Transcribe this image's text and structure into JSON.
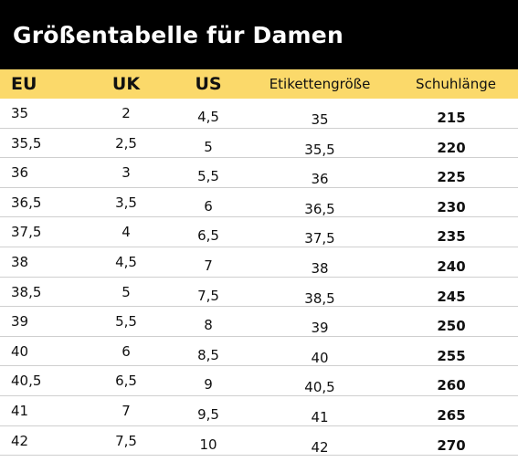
{
  "title": "Größentabelle für Damen",
  "headers": {
    "eu": "EU",
    "uk": "UK",
    "us": "US",
    "etikettengroesse": "Etikettengröße",
    "schuhlaenge": "Schuhlänge"
  },
  "rows": [
    {
      "eu": "35",
      "uk": "2",
      "us": "4,5",
      "etikett": "35",
      "laenge": "215"
    },
    {
      "eu": "35,5",
      "uk": "2,5",
      "us": "5",
      "etikett": "35,5",
      "laenge": "220"
    },
    {
      "eu": "36",
      "uk": "3",
      "us": "5,5",
      "etikett": "36",
      "laenge": "225"
    },
    {
      "eu": "36,5",
      "uk": "3,5",
      "us": "6",
      "etikett": "36,5",
      "laenge": "230"
    },
    {
      "eu": "37,5",
      "uk": "4",
      "us": "6,5",
      "etikett": "37,5",
      "laenge": "235"
    },
    {
      "eu": "38",
      "uk": "4,5",
      "us": "7",
      "etikett": "38",
      "laenge": "240"
    },
    {
      "eu": "38,5",
      "uk": "5",
      "us": "7,5",
      "etikett": "38,5",
      "laenge": "245"
    },
    {
      "eu": "39",
      "uk": "5,5",
      "us": "8",
      "etikett": "39",
      "laenge": "250"
    },
    {
      "eu": "40",
      "uk": "6",
      "us": "8,5",
      "etikett": "40",
      "laenge": "255"
    },
    {
      "eu": "40,5",
      "uk": "6,5",
      "us": "9",
      "etikett": "40,5",
      "laenge": "260"
    },
    {
      "eu": "41",
      "uk": "7",
      "us": "9,5",
      "etikett": "41",
      "laenge": "265"
    },
    {
      "eu": "42",
      "uk": "7,5",
      "us": "10",
      "etikett": "42",
      "laenge": "270"
    }
  ],
  "colors": {
    "title_bg": "#000000",
    "title_fg": "#ffffff",
    "header_bg": "#fbd96a"
  }
}
